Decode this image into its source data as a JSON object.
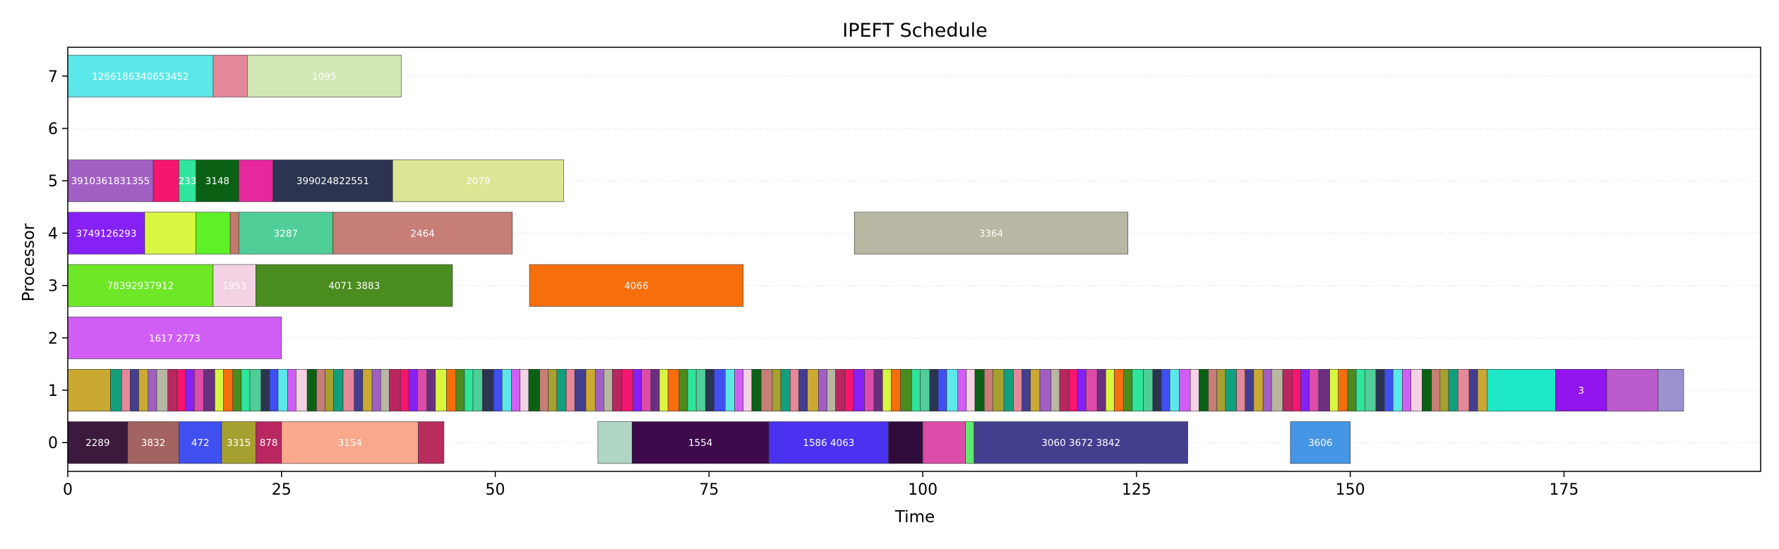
{
  "chart_data": {
    "type": "gantt",
    "title": "IPEFT Schedule",
    "xlabel": "Time",
    "ylabel": "Processor",
    "xlim": [
      0,
      198
    ],
    "ylim": [
      -0.55,
      7.55
    ],
    "xticks": [
      0,
      25,
      50,
      75,
      100,
      125,
      150,
      175
    ],
    "yticks": [
      0,
      1,
      2,
      3,
      4,
      5,
      6,
      7
    ],
    "grid": "horizontal-dotted",
    "tasks": [
      {
        "proc": 7,
        "start": 0,
        "end": 17,
        "color": "#5ce8e8",
        "label": "1266186340653452"
      },
      {
        "proc": 7,
        "start": 17,
        "end": 21,
        "color": "#e5889a",
        "label": ""
      },
      {
        "proc": 7,
        "start": 21,
        "end": 39,
        "color": "#d1e8b4",
        "label": "1095"
      },
      {
        "proc": 5,
        "start": 0,
        "end": 10,
        "color": "#a15fc4",
        "label": "3910361831355"
      },
      {
        "proc": 5,
        "start": 10,
        "end": 13,
        "color": "#f5166f",
        "label": ""
      },
      {
        "proc": 5,
        "start": 13,
        "end": 15,
        "color": "#2fe59b",
        "label": "233"
      },
      {
        "proc": 5,
        "start": 15,
        "end": 20,
        "color": "#0a6114",
        "label": "3148"
      },
      {
        "proc": 5,
        "start": 20,
        "end": 24,
        "color": "#e7279e",
        "label": ""
      },
      {
        "proc": 5,
        "start": 24,
        "end": 38,
        "color": "#2b3551",
        "label": "399024822551"
      },
      {
        "proc": 5,
        "start": 38,
        "end": 58,
        "color": "#dde695",
        "label": "2079"
      },
      {
        "proc": 4,
        "start": 0,
        "end": 9,
        "color": "#8621f5",
        "label": "3749126293"
      },
      {
        "proc": 4,
        "start": 9,
        "end": 15,
        "color": "#d9f740",
        "label": ""
      },
      {
        "proc": 4,
        "start": 15,
        "end": 19,
        "color": "#5ef226",
        "label": ""
      },
      {
        "proc": 4,
        "start": 19,
        "end": 20,
        "color": "#c5786b",
        "label": ""
      },
      {
        "proc": 4,
        "start": 20,
        "end": 31,
        "color": "#4fce98",
        "label": "3287"
      },
      {
        "proc": 4,
        "start": 31,
        "end": 52,
        "color": "#c67e77",
        "label": "2464"
      },
      {
        "proc": 4,
        "start": 92,
        "end": 124,
        "color": "#b8b7a3",
        "label": "3364"
      },
      {
        "proc": 3,
        "start": 0,
        "end": 17,
        "color": "#6ee826",
        "label": "78392937912"
      },
      {
        "proc": 3,
        "start": 17,
        "end": 22,
        "color": "#f3d2e3",
        "label": "1953"
      },
      {
        "proc": 3,
        "start": 22,
        "end": 45,
        "color": "#4a8c1f",
        "label": "4071 3883"
      },
      {
        "proc": 3,
        "start": 54,
        "end": 79,
        "color": "#f76e0d",
        "label": "4066"
      },
      {
        "proc": 2,
        "start": 0,
        "end": 25,
        "color": "#d05ef5",
        "label": "1617 2773"
      },
      {
        "proc": 0,
        "start": 0,
        "end": 7,
        "color": "#3b1a3e",
        "label": "2289"
      },
      {
        "proc": 0,
        "start": 7,
        "end": 13,
        "color": "#a36360",
        "label": "3832"
      },
      {
        "proc": 0,
        "start": 13,
        "end": 18,
        "color": "#3f4ff0",
        "label": "472"
      },
      {
        "proc": 0,
        "start": 18,
        "end": 22,
        "color": "#a6a030",
        "label": "3315"
      },
      {
        "proc": 0,
        "start": 22,
        "end": 25,
        "color": "#b82760",
        "label": "878"
      },
      {
        "proc": 0,
        "start": 25,
        "end": 41,
        "color": "#f9a88c",
        "label": "3154"
      },
      {
        "proc": 0,
        "start": 41,
        "end": 44,
        "color": "#b82c5e",
        "label": ""
      },
      {
        "proc": 0,
        "start": 62,
        "end": 66,
        "color": "#b0d6c6",
        "label": ""
      },
      {
        "proc": 0,
        "start": 66,
        "end": 82,
        "color": "#3d0a4c",
        "label": "1554"
      },
      {
        "proc": 0,
        "start": 82,
        "end": 96,
        "color": "#4a32f0",
        "label": "1586 4063"
      },
      {
        "proc": 0,
        "start": 96,
        "end": 100,
        "color": "#300c3a",
        "label": ""
      },
      {
        "proc": 0,
        "start": 100,
        "end": 105,
        "color": "#dd4ca9",
        "label": ""
      },
      {
        "proc": 0,
        "start": 105,
        "end": 106,
        "color": "#5fe86d",
        "label": ""
      },
      {
        "proc": 0,
        "start": 106,
        "end": 131,
        "color": "#443e8f",
        "label": "3060 3672 3842"
      },
      {
        "proc": 0,
        "start": 143,
        "end": 150,
        "color": "#4596e5",
        "label": "3606"
      }
    ],
    "proc1": {
      "start": 0,
      "end": 189,
      "palette": [
        "#c9a932",
        "#6b2f80",
        "#3f4ff0",
        "#12a07c",
        "#f5166f",
        "#2fe59b",
        "#0a6114",
        "#a15fc4",
        "#d9f740",
        "#5ce8e8",
        "#e5889a",
        "#8621f5",
        "#4fce98",
        "#c67e77",
        "#b8b7a3",
        "#f76e0d",
        "#d05ef5",
        "#443e8f",
        "#dd4ca9",
        "#2b3551",
        "#a6a030",
        "#b82760",
        "#4a8c1f",
        "#f3d2e3"
      ],
      "segments": [
        {
          "start": 166,
          "end": 174,
          "color": "#1fe8c8"
        },
        {
          "start": 174,
          "end": 180,
          "color": "#9214ef"
        },
        {
          "start": 180,
          "end": 186,
          "color": "#bc5ccc"
        },
        {
          "start": 186,
          "end": 189,
          "color": "#9b93cf"
        }
      ],
      "labels": [
        "3"
      ]
    }
  }
}
